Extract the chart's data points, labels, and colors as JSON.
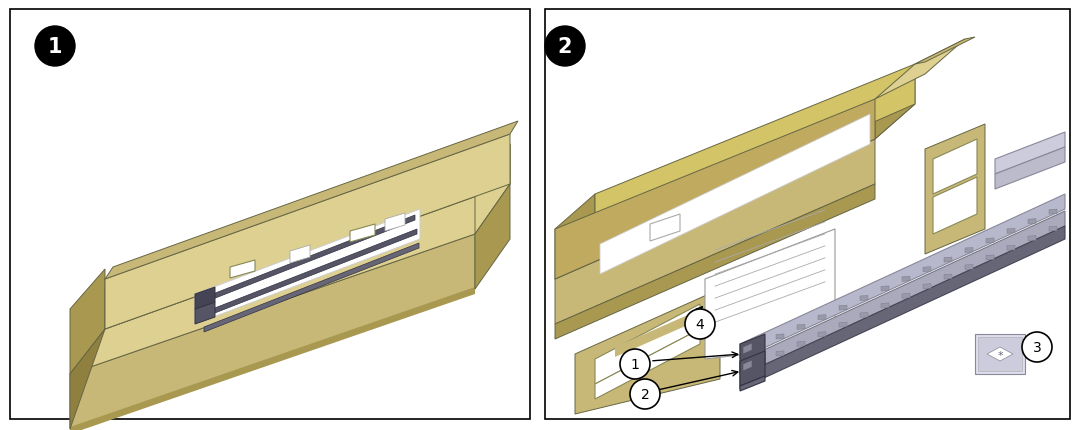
{
  "fig_width": 10.8,
  "fig_height": 4.31,
  "dpi": 100,
  "background_color": "#ffffff",
  "border_color": "#000000",
  "border_lw": 1.2,
  "box_tan": "#c8b878",
  "box_tan_light": "#ddd090",
  "box_tan_dark": "#a89850",
  "box_tan_darker": "#908040",
  "rail_silver": "#aaaacc",
  "rail_dark": "#666677",
  "rail_black": "#333344"
}
